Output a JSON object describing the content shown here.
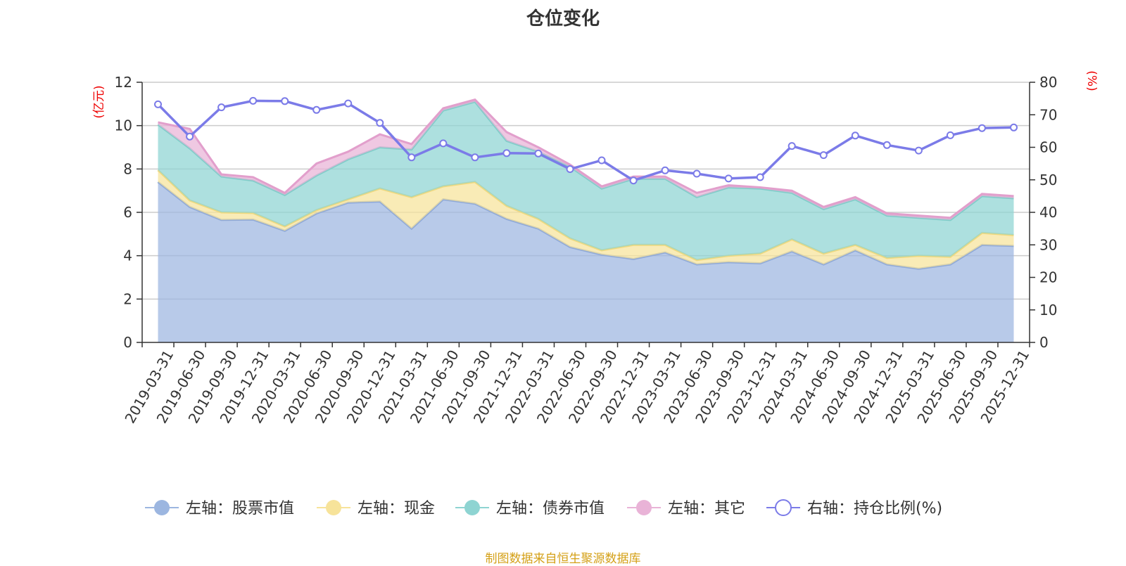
{
  "title": "仓位变化",
  "source_note": "制图数据来自恒生聚源数据库",
  "colors": {
    "stock": "#9cb6e0",
    "cash": "#f7e39a",
    "bond": "#8ed4d2",
    "other": "#e9b3d7",
    "ratio": "#7b7be8",
    "unit": "#ee0000",
    "grid": "#cccccc",
    "axis": "#333333"
  },
  "chart_data": {
    "type": "area",
    "title": "仓位变化",
    "left_axis": {
      "unit": "(亿元)",
      "ylim": [
        0,
        12
      ],
      "ticks": [
        0,
        2,
        4,
        6,
        8,
        10,
        12
      ]
    },
    "right_axis": {
      "unit": "(%)",
      "ylim": [
        0,
        80
      ],
      "ticks": [
        0,
        10,
        20,
        30,
        40,
        50,
        60,
        70,
        80
      ]
    },
    "categories": [
      "2019-03-31",
      "2019-06-30",
      "2019-09-30",
      "2019-12-31",
      "2020-03-31",
      "2020-06-30",
      "2020-09-30",
      "2020-12-31",
      "2021-03-31",
      "2021-06-30",
      "2021-09-30",
      "2021-12-31",
      "2022-03-31",
      "2022-06-30",
      "2022-09-30",
      "2022-12-31",
      "2023-03-31",
      "2023-06-30",
      "2023-09-30",
      "2023-12-31",
      "2024-03-31",
      "2024-06-30",
      "2024-09-30",
      "2024-12-31",
      "2025-03-31",
      "2025-06-30",
      "2025-09-30",
      "2025-12-31"
    ],
    "series": [
      {
        "name": "左轴：股票市值",
        "axis": "left",
        "stack": true,
        "color_key": "stock",
        "values": [
          7.4,
          6.25,
          5.65,
          5.67,
          5.15,
          5.95,
          6.45,
          6.5,
          5.25,
          6.6,
          6.4,
          5.7,
          5.25,
          4.4,
          4.05,
          3.85,
          4.15,
          3.6,
          3.7,
          3.65,
          4.2,
          3.6,
          4.25,
          3.6,
          3.4,
          3.6,
          4.5,
          4.45
        ]
      },
      {
        "name": "左轴：现金",
        "axis": "left",
        "stack": true,
        "color_key": "cash",
        "values": [
          0.55,
          0.3,
          0.35,
          0.3,
          0.2,
          0.15,
          0.15,
          0.6,
          1.45,
          0.6,
          1.0,
          0.6,
          0.45,
          0.4,
          0.2,
          0.65,
          0.35,
          0.2,
          0.3,
          0.45,
          0.55,
          0.5,
          0.25,
          0.3,
          0.6,
          0.35,
          0.55,
          0.5
        ]
      },
      {
        "name": "左轴：债券市值",
        "axis": "left",
        "stack": true,
        "color_key": "bond",
        "values": [
          2.1,
          2.4,
          1.65,
          1.5,
          1.45,
          1.6,
          1.85,
          1.9,
          2.2,
          3.5,
          3.7,
          3.0,
          3.1,
          3.3,
          2.85,
          3.05,
          3.05,
          2.9,
          3.15,
          3.0,
          2.15,
          2.05,
          2.1,
          1.95,
          1.75,
          1.7,
          1.7,
          1.7
        ]
      },
      {
        "name": "左轴：其它",
        "axis": "left",
        "stack": true,
        "color_key": "other",
        "values": [
          0.1,
          0.9,
          0.1,
          0.15,
          0.1,
          0.55,
          0.35,
          0.6,
          0.25,
          0.1,
          0.1,
          0.4,
          0.2,
          0.1,
          0.1,
          0.1,
          0.1,
          0.2,
          0.1,
          0.05,
          0.1,
          0.1,
          0.1,
          0.1,
          0.1,
          0.1,
          0.1,
          0.1
        ]
      },
      {
        "name": "右轴：持仓比例(%)",
        "axis": "right",
        "stack": false,
        "color_key": "ratio",
        "values": [
          73.2,
          63.3,
          72.3,
          74.3,
          74.2,
          71.5,
          73.5,
          67.5,
          56.9,
          61.2,
          56.9,
          58.2,
          58.1,
          53.3,
          56.0,
          49.8,
          52.9,
          51.9,
          50.4,
          50.8,
          60.4,
          57.6,
          63.6,
          60.7,
          59.0,
          63.7,
          65.9,
          66.1
        ]
      }
    ]
  }
}
